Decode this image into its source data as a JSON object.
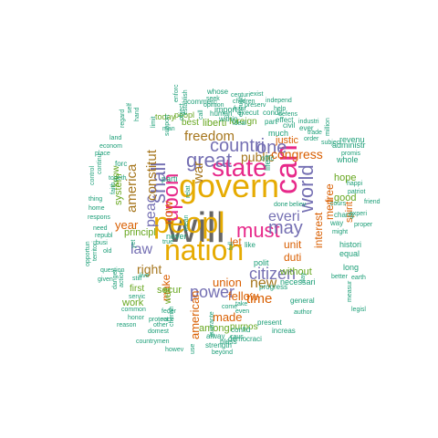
{
  "colors": {
    "teal": "#1b9e77",
    "orange": "#d95f02",
    "purple": "#7570b3",
    "magenta": "#e7298a",
    "green": "#66a61e",
    "gold": "#e6ab02",
    "brown": "#a6761d",
    "gray": "#666666"
  },
  "words": [
    {
      "text": "will",
      "color": "gray"
    },
    {
      "text": "govern",
      "color": "gold"
    },
    {
      "text": "peopl",
      "color": "gold"
    },
    {
      "text": "nation",
      "color": "gold"
    },
    {
      "text": "can",
      "color": "magenta"
    },
    {
      "text": "state",
      "color": "magenta"
    },
    {
      "text": "upon",
      "color": "magenta"
    },
    {
      "text": "great",
      "color": "purple"
    },
    {
      "text": "countri",
      "color": "purple"
    },
    {
      "text": "shall",
      "color": "purple"
    },
    {
      "text": "must",
      "color": "magenta"
    },
    {
      "text": "may",
      "color": "purple"
    },
    {
      "text": "one",
      "color": "purple"
    },
    {
      "text": "world",
      "color": "purple"
    },
    {
      "text": "power",
      "color": "purple"
    },
    {
      "text": "everi",
      "color": "purple"
    },
    {
      "text": "citizen",
      "color": "purple"
    },
    {
      "text": "peac",
      "color": "purple"
    },
    {
      "text": "law",
      "color": "purple"
    },
    {
      "text": "constitut",
      "color": "brown"
    },
    {
      "text": "america",
      "color": "brown"
    },
    {
      "text": "war",
      "color": "brown"
    },
    {
      "text": "freedom",
      "color": "brown"
    },
    {
      "text": "public",
      "color": "brown"
    },
    {
      "text": "now",
      "color": "orange"
    },
    {
      "text": "right",
      "color": "brown"
    },
    {
      "text": "new",
      "color": "brown"
    },
    {
      "text": "time",
      "color": "orange"
    },
    {
      "text": "congress",
      "color": "orange"
    },
    {
      "text": "year",
      "color": "orange"
    },
    {
      "text": "union",
      "color": "orange"
    },
    {
      "text": "american",
      "color": "orange"
    },
    {
      "text": "justic",
      "color": "orange"
    },
    {
      "text": "unit",
      "color": "orange"
    },
    {
      "text": "duti",
      "color": "orange"
    },
    {
      "text": "free",
      "color": "orange"
    },
    {
      "text": "men",
      "color": "orange"
    },
    {
      "text": "made",
      "color": "orange"
    },
    {
      "text": "interest",
      "color": "orange"
    },
    {
      "text": "spirit",
      "color": "orange"
    },
    {
      "text": "make",
      "color": "orange"
    },
    {
      "text": "fellow",
      "color": "orange"
    },
    {
      "text": "let",
      "color": "orange"
    },
    {
      "text": "principl",
      "color": "green"
    },
    {
      "text": "secur",
      "color": "green"
    },
    {
      "text": "without",
      "color": "green"
    },
    {
      "text": "good",
      "color": "green"
    },
    {
      "text": "hope",
      "color": "green"
    },
    {
      "text": "work",
      "color": "green"
    },
    {
      "text": "among",
      "color": "green"
    },
    {
      "text": "purpos",
      "color": "green"
    },
    {
      "text": "peopl",
      "color": "green"
    },
    {
      "text": "liberti",
      "color": "green"
    },
    {
      "text": "best",
      "color": "green"
    },
    {
      "text": "foreign",
      "color": "green"
    },
    {
      "text": "system",
      "color": "green"
    },
    {
      "text": "know",
      "color": "green"
    },
    {
      "text": "today",
      "color": "green"
    },
    {
      "text": "first",
      "color": "green"
    },
    {
      "text": "well",
      "color": "green"
    },
    {
      "text": "parti",
      "color": "teal"
    },
    {
      "text": "never",
      "color": "teal"
    },
    {
      "text": "import",
      "color": "teal"
    },
    {
      "text": "within",
      "color": "teal"
    },
    {
      "text": "execut",
      "color": "teal"
    },
    {
      "text": "condit",
      "color": "teal"
    },
    {
      "text": "part",
      "color": "teal"
    },
    {
      "text": "effect",
      "color": "teal"
    },
    {
      "text": "much",
      "color": "teal"
    },
    {
      "text": "civil",
      "color": "teal"
    },
    {
      "text": "life",
      "color": "teal"
    },
    {
      "text": "offic",
      "color": "teal"
    },
    {
      "text": "administr",
      "color": "teal"
    },
    {
      "text": "whole",
      "color": "teal"
    },
    {
      "text": "revenu",
      "color": "teal"
    },
    {
      "text": "done",
      "color": "teal"
    },
    {
      "text": "believ",
      "color": "teal"
    },
    {
      "text": "cours",
      "color": "teal"
    },
    {
      "text": "chang",
      "color": "teal"
    },
    {
      "text": "way",
      "color": "teal"
    },
    {
      "text": "like",
      "color": "teal"
    },
    {
      "text": "histori",
      "color": "teal"
    },
    {
      "text": "equal",
      "color": "teal"
    },
    {
      "text": "long",
      "color": "teal"
    },
    {
      "text": "polit",
      "color": "teal"
    },
    {
      "text": "necessari",
      "color": "teal"
    },
    {
      "text": "general",
      "color": "teal"
    },
    {
      "text": "present",
      "color": "teal"
    },
    {
      "text": "democraci",
      "color": "teal"
    },
    {
      "text": "confid",
      "color": "teal"
    },
    {
      "text": "alway",
      "color": "teal"
    },
    {
      "text": "bless",
      "color": "teal"
    },
    {
      "text": "strength",
      "color": "teal"
    },
    {
      "text": "beyond",
      "color": "teal"
    },
    {
      "text": "increas",
      "color": "teal"
    },
    {
      "text": "caus",
      "color": "teal"
    },
    {
      "text": "progress",
      "color": "teal"
    },
    {
      "text": "take",
      "color": "teal"
    },
    {
      "text": "even",
      "color": "teal"
    },
    {
      "text": "commerc",
      "color": "teal"
    },
    {
      "text": "whose",
      "color": "teal"
    },
    {
      "text": "seek",
      "color": "teal"
    },
    {
      "text": "centuri",
      "color": "teal"
    },
    {
      "text": "exist",
      "color": "teal"
    },
    {
      "text": "opinion",
      "color": "teal"
    },
    {
      "text": "children",
      "color": "teal"
    },
    {
      "text": "futur",
      "color": "teal"
    },
    {
      "text": "preserv",
      "color": "teal"
    },
    {
      "text": "independ",
      "color": "teal"
    },
    {
      "text": "human",
      "color": "teal"
    },
    {
      "text": "help",
      "color": "teal"
    },
    {
      "text": "defens",
      "color": "teal"
    },
    {
      "text": "ever",
      "color": "teal"
    },
    {
      "text": "industri",
      "color": "teal"
    },
    {
      "text": "trade",
      "color": "teal"
    },
    {
      "text": "order",
      "color": "teal"
    },
    {
      "text": "subject",
      "color": "teal"
    },
    {
      "text": "million",
      "color": "teal"
    },
    {
      "text": "promis",
      "color": "teal"
    },
    {
      "text": "ideal",
      "color": "teal"
    },
    {
      "text": "enforc",
      "color": "teal"
    },
    {
      "text": "support",
      "color": "teal"
    },
    {
      "text": "man",
      "color": "teal"
    },
    {
      "text": "happi",
      "color": "teal"
    },
    {
      "text": "patriot",
      "color": "teal"
    },
    {
      "text": "friend",
      "color": "teal"
    },
    {
      "text": "experi",
      "color": "teal"
    },
    {
      "text": "might",
      "color": "teal"
    },
    {
      "text": "proper",
      "color": "teal"
    },
    {
      "text": "earth",
      "color": "teal"
    },
    {
      "text": "better",
      "color": "teal"
    },
    {
      "text": "legisl",
      "color": "teal"
    },
    {
      "text": "author",
      "color": "teal"
    },
    {
      "text": "measur",
      "color": "teal"
    },
    {
      "text": "day",
      "color": "teal"
    },
    {
      "text": "forc",
      "color": "teal"
    },
    {
      "text": "land",
      "color": "teal"
    },
    {
      "text": "econom",
      "color": "teal"
    },
    {
      "text": "place",
      "color": "teal"
    },
    {
      "text": "togeth",
      "color": "teal"
    },
    {
      "text": "regard",
      "color": "teal"
    },
    {
      "text": "self",
      "color": "teal"
    },
    {
      "text": "hand",
      "color": "teal"
    },
    {
      "text": "faith",
      "color": "teal"
    },
    {
      "text": "continu",
      "color": "teal"
    },
    {
      "text": "control",
      "color": "teal"
    },
    {
      "text": "thing",
      "color": "teal"
    },
    {
      "text": "home",
      "color": "teal"
    },
    {
      "text": "respons",
      "color": "teal"
    },
    {
      "text": "need",
      "color": "teal"
    },
    {
      "text": "republ",
      "color": "teal"
    },
    {
      "text": "busi",
      "color": "teal"
    },
    {
      "text": "old",
      "color": "teal"
    },
    {
      "text": "territori",
      "color": "teal"
    },
    {
      "text": "question",
      "color": "teal"
    },
    {
      "text": "opportun",
      "color": "teal"
    },
    {
      "text": "given",
      "color": "teal"
    },
    {
      "text": "danger",
      "color": "teal"
    },
    {
      "text": "action",
      "color": "teal"
    },
    {
      "text": "servic",
      "color": "teal"
    },
    {
      "text": "common",
      "color": "teal"
    },
    {
      "text": "honor",
      "color": "teal"
    },
    {
      "text": "reason",
      "color": "teal"
    },
    {
      "text": "race",
      "color": "teal"
    },
    {
      "text": "feder",
      "color": "teal"
    },
    {
      "text": "protect",
      "color": "teal"
    },
    {
      "text": "domest",
      "color": "teal"
    },
    {
      "text": "countrymen",
      "color": "teal"
    },
    {
      "text": "other",
      "color": "teal"
    },
    {
      "text": "cherish",
      "color": "teal"
    },
    {
      "text": "howev",
      "color": "teal"
    },
    {
      "text": "use",
      "color": "teal"
    },
    {
      "text": "live",
      "color": "teal"
    },
    {
      "text": "still",
      "color": "teal"
    },
    {
      "text": "yet",
      "color": "teal"
    },
    {
      "text": "true",
      "color": "teal"
    },
    {
      "text": "mean",
      "color": "teal"
    },
    {
      "text": "relat",
      "color": "teal"
    },
    {
      "text": "full",
      "color": "teal"
    },
    {
      "text": "come",
      "color": "teal"
    },
    {
      "text": "guarante",
      "color": "teal"
    },
    {
      "text": "object",
      "color": "teal"
    },
    {
      "text": "establish",
      "color": "teal"
    },
    {
      "text": "limit",
      "color": "teal"
    },
    {
      "text": "call",
      "color": "teal"
    },
    {
      "text": "enough",
      "color": "teal"
    }
  ]
}
